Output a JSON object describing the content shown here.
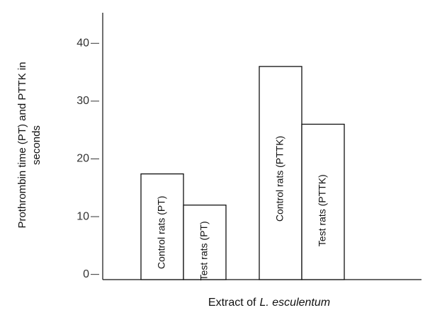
{
  "chart_data": {
    "type": "bar",
    "ylabel": [
      "Prothrombin time (PT) and PTTK in",
      "seconds"
    ],
    "xlabel": [
      "Extract of",
      "L. esculentum"
    ],
    "categories": [
      "Control rats (PT)",
      "Test rats (PT)",
      "Control rats (PTTK)",
      "Test rats (PTTK)"
    ],
    "values": [
      17.4,
      12,
      36,
      26
    ],
    "color": "#ffffff",
    "ylim": [
      -0.9,
      45.3
    ],
    "yticks": [
      0,
      10,
      20,
      30,
      40
    ]
  }
}
